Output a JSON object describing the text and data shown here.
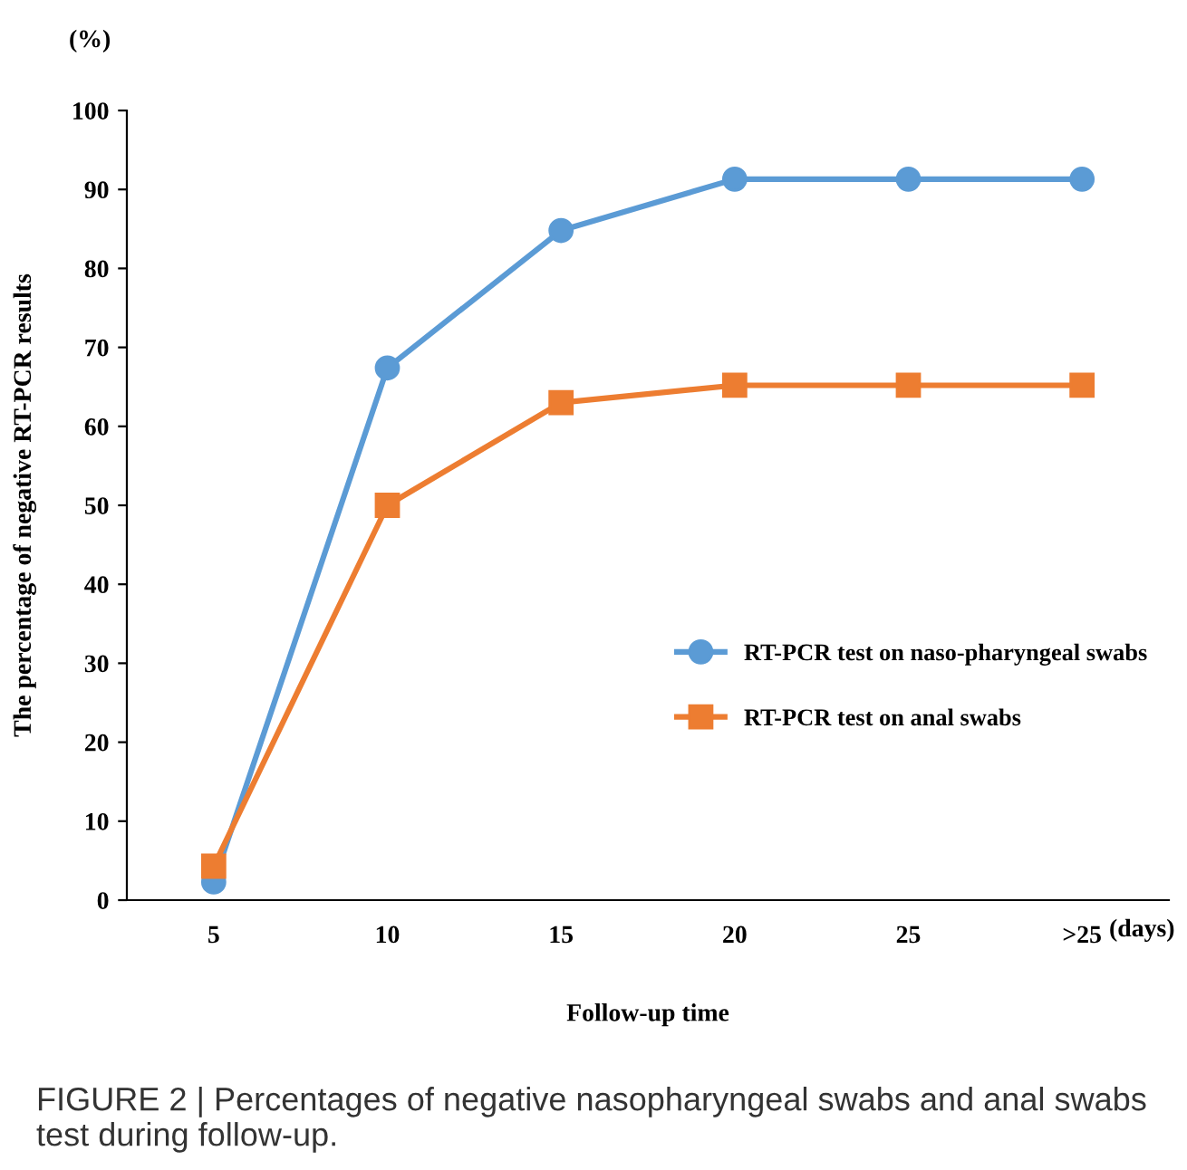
{
  "chart_data": {
    "type": "line",
    "xlabel": "Follow-up time",
    "ylabel": "The percentage of negative RT-PCR results",
    "categories": [
      "5",
      "10",
      "15",
      "20",
      "25",
      ">25"
    ],
    "series": [
      {
        "name": "RT-PCR test on naso-pharyngeal swabs",
        "color": "#5b9bd5",
        "marker": "circle",
        "values": [
          2.3,
          67.4,
          84.8,
          91.3,
          91.3,
          91.3
        ]
      },
      {
        "name": "RT-PCR test on anal swabs",
        "color": "#ed7d31",
        "marker": "square",
        "values": [
          4.3,
          50,
          63,
          65.2,
          65.2,
          65.2
        ]
      }
    ],
    "ylim": [
      0,
      100
    ],
    "yticks": [
      0,
      10,
      20,
      30,
      40,
      50,
      60,
      70,
      80,
      90,
      100
    ],
    "grid": false,
    "legend": "right",
    "annotations": [
      "(%)",
      "(days)",
      "FIGURE 2 | Percentages of negative nasopharyngeal swabs and anal swabs test during follow-up."
    ]
  }
}
